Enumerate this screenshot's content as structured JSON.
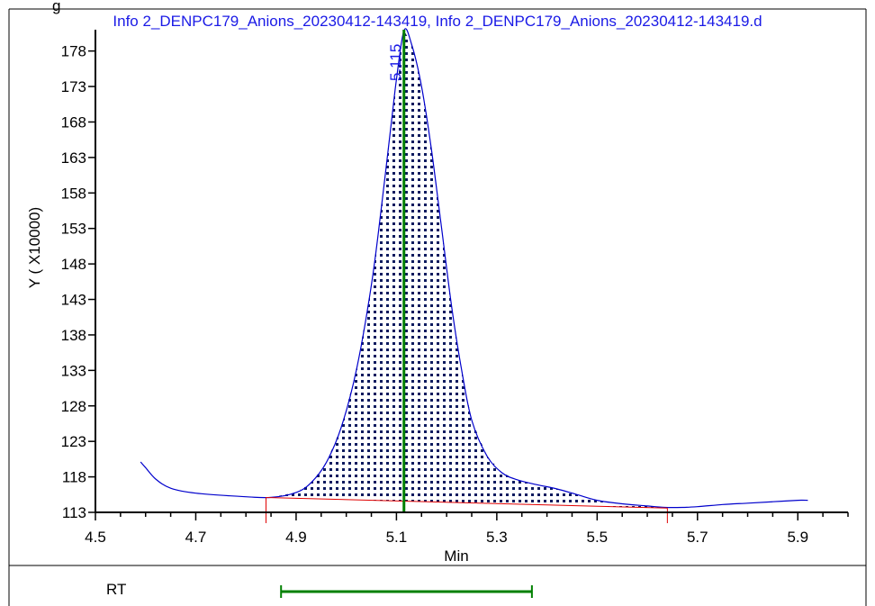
{
  "partial_label": "g",
  "chart_data": {
    "type": "line",
    "title": "Info 2_DENPC179_Anions_20230412-143419, Info 2_DENPC179_Anions_20230412-143419.d",
    "xlabel": "Min",
    "ylabel": "Y ( X10000)",
    "xlim": [
      4.5,
      6.0
    ],
    "ylim": [
      113,
      181
    ],
    "x_ticks": [
      "4.5",
      "4.7",
      "4.9",
      "5.1",
      "5.3",
      "5.5",
      "5.7",
      "5.9"
    ],
    "y_ticks": [
      "113",
      "118",
      "123",
      "128",
      "133",
      "138",
      "143",
      "148",
      "153",
      "158",
      "163",
      "168",
      "173",
      "178"
    ],
    "series": [
      {
        "color": "#0000cc",
        "x": [
          4.59,
          4.6,
          4.62,
          4.65,
          4.7,
          4.8,
          4.85,
          4.9,
          4.93,
          4.96,
          4.99,
          5.02,
          5.05,
          5.07,
          5.09,
          5.1,
          5.115,
          5.13,
          5.15,
          5.17,
          5.19,
          5.21,
          5.23,
          5.25,
          5.28,
          5.31,
          5.34,
          5.38,
          5.42,
          5.46,
          5.5,
          5.55,
          5.6,
          5.635,
          5.67,
          5.7,
          5.75,
          5.8,
          5.85,
          5.9,
          5.92
        ],
        "y": [
          120.1,
          119.3,
          117.7,
          116.4,
          115.7,
          115.2,
          115.1,
          115.8,
          117.2,
          120.0,
          125.0,
          133.0,
          145.0,
          156.0,
          168.0,
          174.0,
          180.9,
          179.0,
          173.0,
          164.0,
          153.0,
          142.0,
          133.0,
          126.0,
          121.0,
          118.6,
          117.6,
          116.9,
          116.3,
          115.5,
          114.7,
          114.2,
          113.9,
          113.7,
          113.7,
          113.8,
          114.1,
          114.3,
          114.5,
          114.7,
          114.7
        ]
      }
    ],
    "baseline": {
      "color": "#e00000",
      "x": [
        4.84,
        5.64
      ],
      "y": [
        115.1,
        113.6
      ]
    },
    "integration_start": 4.84,
    "integration_end": 5.64,
    "peak": {
      "rt": 5.115,
      "label": "5.115",
      "color": "#008000"
    },
    "annotation_row": {
      "label": "RT",
      "range": [
        4.87,
        5.37
      ],
      "color": "#008000"
    },
    "grid": false,
    "legend": "none"
  }
}
